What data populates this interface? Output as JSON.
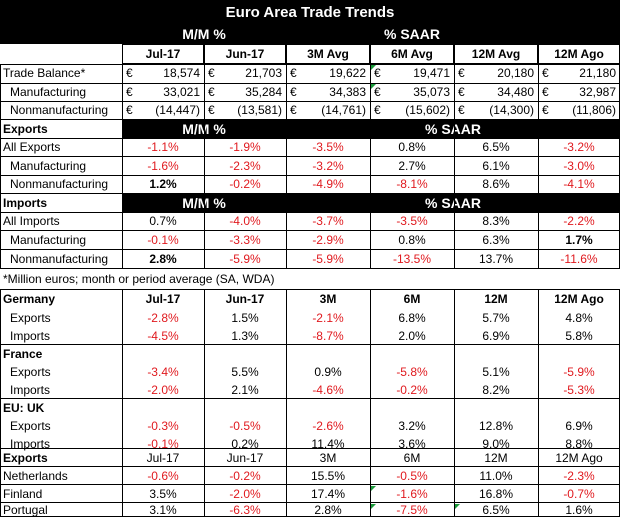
{
  "title": "Euro Area Trade Trends",
  "header": {
    "mm": "M/M %",
    "saar": "% SAAR",
    "cols": [
      "Jul-17",
      "Jun-17",
      "3M Avg",
      "6M Avg",
      "12M Avg",
      "12M Ago"
    ]
  },
  "currency_symbol": "€",
  "balance_rows": [
    {
      "label": "Trade Balance*",
      "values": [
        "18,574",
        "21,703",
        "19,622",
        "19,471",
        "20,180",
        "21,180"
      ]
    },
    {
      "label": "Manufacturing",
      "values": [
        "33,021",
        "35,284",
        "34,383",
        "35,073",
        "34,480",
        "32,987"
      ]
    },
    {
      "label": "Nonmanufacturing",
      "values": [
        "(14,447)",
        "(13,581)",
        "(14,761)",
        "(15,602)",
        "(14,300)",
        "(11,806)"
      ]
    }
  ],
  "exports_section": {
    "label": "Exports",
    "mm": "M/M %",
    "saar": "% SAAR",
    "rows": [
      {
        "label": "All Exports",
        "values": [
          "-1.1%",
          "-1.9%",
          "-3.5%",
          "0.8%",
          "6.5%",
          "-3.2%"
        ]
      },
      {
        "label": "Manufacturing",
        "values": [
          "-1.6%",
          "-2.3%",
          "-3.2%",
          "2.7%",
          "6.1%",
          "-3.0%"
        ]
      },
      {
        "label": "Nonmanufacturing",
        "values": [
          "1.2%",
          "-0.2%",
          "-4.9%",
          "-8.1%",
          "8.6%",
          "-4.1%"
        ]
      }
    ]
  },
  "imports_section": {
    "label": "Imports",
    "mm": "M/M %",
    "saar": "% SAAR",
    "rows": [
      {
        "label": "All Imports",
        "values": [
          "0.7%",
          "-4.0%",
          "-3.7%",
          "-3.5%",
          "8.3%",
          "-2.2%"
        ]
      },
      {
        "label": "Manufacturing",
        "values": [
          "-0.1%",
          "-3.3%",
          "-2.9%",
          "0.8%",
          "6.3%",
          "1.7%"
        ]
      },
      {
        "label": "Nonmanufacturing",
        "values": [
          "2.8%",
          "-5.9%",
          "-5.9%",
          "-13.5%",
          "13.7%",
          "-11.6%"
        ]
      }
    ]
  },
  "footnote": "*Million euros; month or period average (SA, WDA)",
  "country_header": {
    "cols": [
      "Jul-17",
      "Jun-17",
      "3M",
      "6M",
      "12M",
      "12M Ago"
    ]
  },
  "countries": [
    {
      "name": "Germany",
      "rows": [
        {
          "label": "Exports",
          "values": [
            "-2.8%",
            "1.5%",
            "-2.1%",
            "6.8%",
            "5.7%",
            "4.8%"
          ]
        },
        {
          "label": "Imports",
          "values": [
            "-4.5%",
            "1.3%",
            "-8.7%",
            "2.0%",
            "6.9%",
            "5.8%"
          ]
        }
      ]
    },
    {
      "name": "France",
      "rows": [
        {
          "label": "Exports",
          "values": [
            "-3.4%",
            "5.5%",
            "0.9%",
            "-5.8%",
            "5.1%",
            "-5.9%"
          ]
        },
        {
          "label": "Imports",
          "values": [
            "-2.0%",
            "2.1%",
            "-4.6%",
            "-0.2%",
            "8.2%",
            "-5.3%"
          ]
        }
      ]
    },
    {
      "name": "EU: UK",
      "rows": [
        {
          "label": "Exports",
          "values": [
            "-0.3%",
            "-0.5%",
            "-2.6%",
            "3.2%",
            "12.8%",
            "6.9%"
          ]
        },
        {
          "label": "Imports",
          "values": [
            "-0.1%",
            "0.2%",
            "11.4%",
            "3.6%",
            "9.0%",
            "8.8%"
          ]
        }
      ]
    }
  ],
  "exports_by_country": {
    "label": "Exports",
    "cols": [
      "Jul-17",
      "Jun-17",
      "3M",
      "6M",
      "12M",
      "12M Ago"
    ],
    "rows": [
      {
        "label": "Netherlands",
        "values": [
          "-0.6%",
          "-0.2%",
          "15.5%",
          "-0.5%",
          "11.0%",
          "-2.3%"
        ]
      },
      {
        "label": "Finland",
        "values": [
          "3.5%",
          "-2.0%",
          "17.4%",
          "-1.6%",
          "16.8%",
          "-0.7%"
        ]
      },
      {
        "label": "Portugal",
        "values": [
          "3.1%",
          "-6.3%",
          "2.8%",
          "-7.5%",
          "6.5%",
          "1.6%"
        ]
      }
    ]
  },
  "colors": {
    "negative": "#e0191e",
    "header_bg": "#000000",
    "header_text": "#ffffff",
    "corner_marker": "#1a9a3a"
  }
}
